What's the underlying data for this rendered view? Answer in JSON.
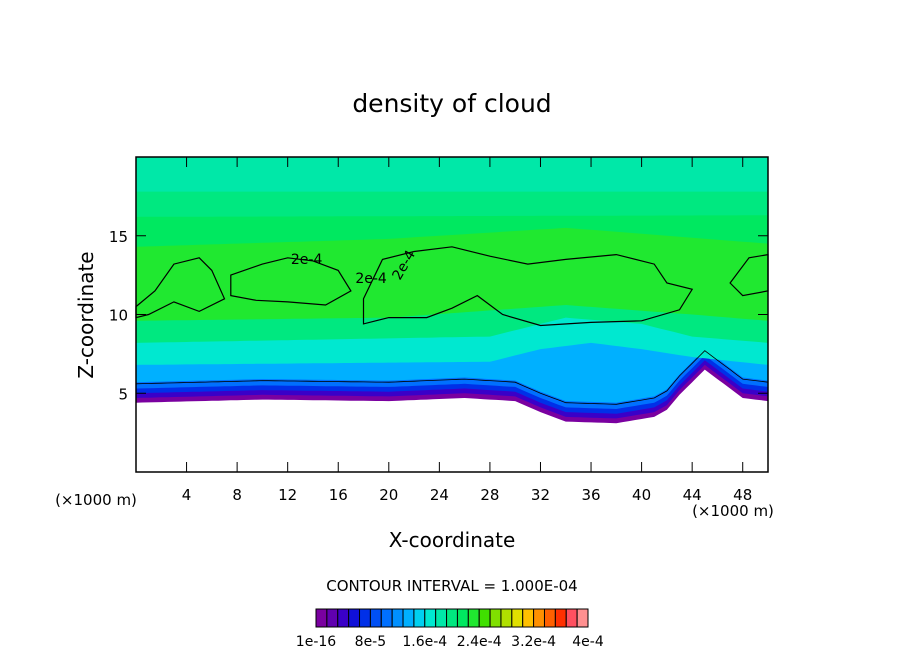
{
  "chart_data": {
    "type": "contour",
    "title": "density of cloud",
    "x_label": "X-coordinate",
    "y_label": "Z-coordinate",
    "x_unit": "(×1000 m)",
    "y_unit": "(×1000 m)",
    "xlim": [
      0,
      50
    ],
    "ylim": [
      0,
      20
    ],
    "xticks": [
      4,
      8,
      12,
      16,
      20,
      24,
      28,
      32,
      36,
      40,
      44,
      48
    ],
    "yticks": [
      5,
      10,
      15
    ],
    "contour_interval": "CONTOUR INTERVAL = 1.000E-04",
    "contour_labels": [
      "2e-4",
      "2e-4",
      "2e-4"
    ],
    "colorbar": {
      "colors": [
        "#7a00a0",
        "#6000b0",
        "#3a00c8",
        "#1010d8",
        "#0030e8",
        "#0050f5",
        "#0070ff",
        "#0090ff",
        "#00b0ff",
        "#00d0f0",
        "#00e8d0",
        "#00e8a8",
        "#00e880",
        "#00e860",
        "#20e830",
        "#40e000",
        "#80e000",
        "#b0e000",
        "#e0e000",
        "#ffc000",
        "#ff9000",
        "#ff6000",
        "#ff3000",
        "#ff5060",
        "#ff9090"
      ],
      "ticks": [
        {
          "value": 1e-16,
          "label": "1e-16"
        },
        {
          "value": 8e-05,
          "label": "8e-5"
        },
        {
          "value": 0.00016,
          "label": "1.6e-4"
        },
        {
          "value": 0.00024,
          "label": "2.4e-4"
        },
        {
          "value": 0.00032,
          "label": "3.2e-4"
        },
        {
          "value": 0.0004,
          "label": "4e-4"
        }
      ],
      "lim": [
        0,
        0.0004
      ]
    }
  }
}
